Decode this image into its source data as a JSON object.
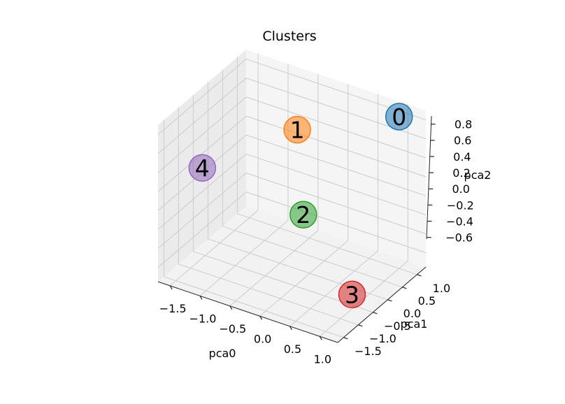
{
  "chart_data": {
    "type": "scatter",
    "projection": "3d",
    "title": "Clusters",
    "xlabel": "pca0",
    "ylabel": "pca1",
    "zlabel": "pca2",
    "xlim": [
      -1.7,
      1.3
    ],
    "ylim": [
      -1.7,
      1.3
    ],
    "zlim": [
      -0.75,
      0.9
    ],
    "xticks": [
      -1.5,
      -1.0,
      -0.5,
      0.0,
      0.5,
      1.0
    ],
    "xtick_labels": [
      "−1.5",
      "−1.0",
      "−0.5",
      "0.0",
      "0.5",
      "1.0"
    ],
    "yticks": [
      -1.5,
      -1.0,
      -0.5,
      0.0,
      0.5,
      1.0
    ],
    "ytick_labels": [
      "−1.5",
      "−1.0",
      "−0.5",
      "0.0",
      "0.5",
      "1.0"
    ],
    "zticks": [
      -0.6,
      -0.4,
      -0.2,
      0.0,
      0.2,
      0.4,
      0.6,
      0.8
    ],
    "ztick_labels": [
      "−0.6",
      "−0.4",
      "−0.2",
      "0.0",
      "0.2",
      "0.4",
      "0.6",
      "0.8"
    ],
    "grid": true,
    "points": [
      {
        "label": "0",
        "x": 1.0,
        "y": 1.0,
        "z": 0.85,
        "color": "#1f77b4"
      },
      {
        "label": "1",
        "x": -0.7,
        "y": 1.0,
        "z": 0.35,
        "color": "#ff7f0e"
      },
      {
        "label": "2",
        "x": -0.5,
        "y": 0.8,
        "z": -0.45,
        "color": "#2ca02c"
      },
      {
        "label": "3",
        "x": 1.0,
        "y": -0.6,
        "z": -0.6,
        "color": "#d62728"
      },
      {
        "label": "4",
        "x": -1.5,
        "y": -0.6,
        "z": 0.2,
        "color": "#9467bd"
      }
    ]
  }
}
